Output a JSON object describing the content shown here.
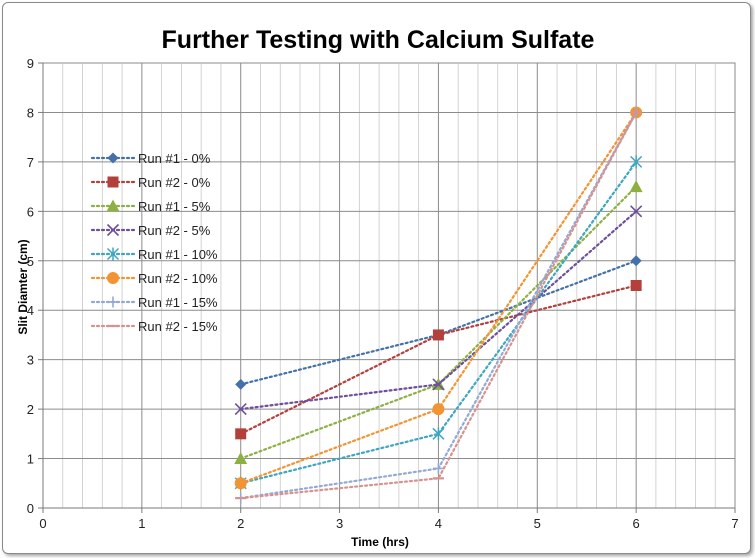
{
  "chart_data": {
    "type": "line",
    "title": "Further Testing with Calcium Sulfate",
    "xlabel": "Time (hrs)",
    "ylabel": "Slit Diamter (cm)",
    "xlim": [
      0,
      7
    ],
    "ylim": [
      0,
      9
    ],
    "x_ticks": [
      "0",
      "1",
      "2",
      "3",
      "4",
      "5",
      "6",
      "7"
    ],
    "y_ticks": [
      "0",
      "1",
      "2",
      "3",
      "4",
      "5",
      "6",
      "7",
      "8",
      "9"
    ],
    "grid": true,
    "legend_position": "left",
    "x": [
      2,
      4,
      6
    ],
    "series": [
      {
        "name": "Run #1 - 0%",
        "values": [
          2.5,
          3.5,
          5.0
        ],
        "color": "#4472A8",
        "marker": "diamond"
      },
      {
        "name": "Run #2 - 0%",
        "values": [
          1.5,
          3.5,
          4.5
        ],
        "color": "#B4403C",
        "marker": "square"
      },
      {
        "name": "Run #1 - 5%",
        "values": [
          1.0,
          2.5,
          6.5
        ],
        "color": "#8DB043",
        "marker": "triangle"
      },
      {
        "name": "Run #2 - 5%",
        "values": [
          2.0,
          2.5,
          6.0
        ],
        "color": "#6E4F9B",
        "marker": "x"
      },
      {
        "name": "Run #1 - 10%",
        "values": [
          0.5,
          1.5,
          7.0
        ],
        "color": "#3DA6C0",
        "marker": "star"
      },
      {
        "name": "Run #2 - 10%",
        "values": [
          0.5,
          2.0,
          8.0
        ],
        "color": "#F39433",
        "marker": "circle"
      },
      {
        "name": "Run #1 - 15%",
        "values": [
          0.2,
          0.8,
          8.0
        ],
        "color": "#93A9D5",
        "marker": "plus"
      },
      {
        "name": "Run #2 - 15%",
        "values": [
          0.2,
          0.6,
          8.0
        ],
        "color": "#D9918E",
        "marker": "dash"
      }
    ]
  }
}
